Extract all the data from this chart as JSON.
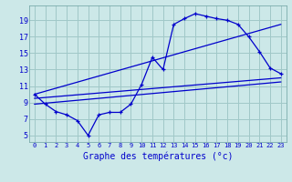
{
  "background_color": "#cce8e8",
  "grid_color": "#a0c8c8",
  "line_color": "#0000cc",
  "xlabel": "Graphe des températures (°c)",
  "x_ticks": [
    0,
    1,
    2,
    3,
    4,
    5,
    6,
    7,
    8,
    9,
    10,
    11,
    12,
    13,
    14,
    15,
    16,
    17,
    18,
    19,
    20,
    21,
    22,
    23
  ],
  "y_ticks": [
    5,
    7,
    9,
    11,
    13,
    15,
    17,
    19
  ],
  "xlim": [
    -0.5,
    23.5
  ],
  "ylim": [
    4.2,
    20.8
  ],
  "curve_x": [
    0,
    1,
    2,
    3,
    4,
    5,
    6,
    7,
    8,
    9,
    10,
    11,
    12,
    13,
    14,
    15,
    16,
    17,
    18,
    19,
    20,
    21,
    22,
    23
  ],
  "curve_y": [
    10.0,
    8.8,
    7.9,
    7.5,
    6.8,
    5.0,
    7.5,
    7.8,
    7.8,
    8.8,
    11.2,
    14.5,
    13.0,
    18.5,
    19.2,
    19.8,
    19.5,
    19.2,
    19.0,
    18.5,
    17.0,
    15.2,
    13.2,
    12.5
  ],
  "line2_x": [
    0,
    23
  ],
  "line2_y": [
    9.5,
    12.0
  ],
  "line3_x": [
    0,
    23
  ],
  "line3_y": [
    8.8,
    11.5
  ],
  "line4_x": [
    0,
    23
  ],
  "line4_y": [
    10.0,
    18.5
  ],
  "xlabel_fontsize": 7,
  "tick_fontsize_x": 5,
  "tick_fontsize_y": 6
}
